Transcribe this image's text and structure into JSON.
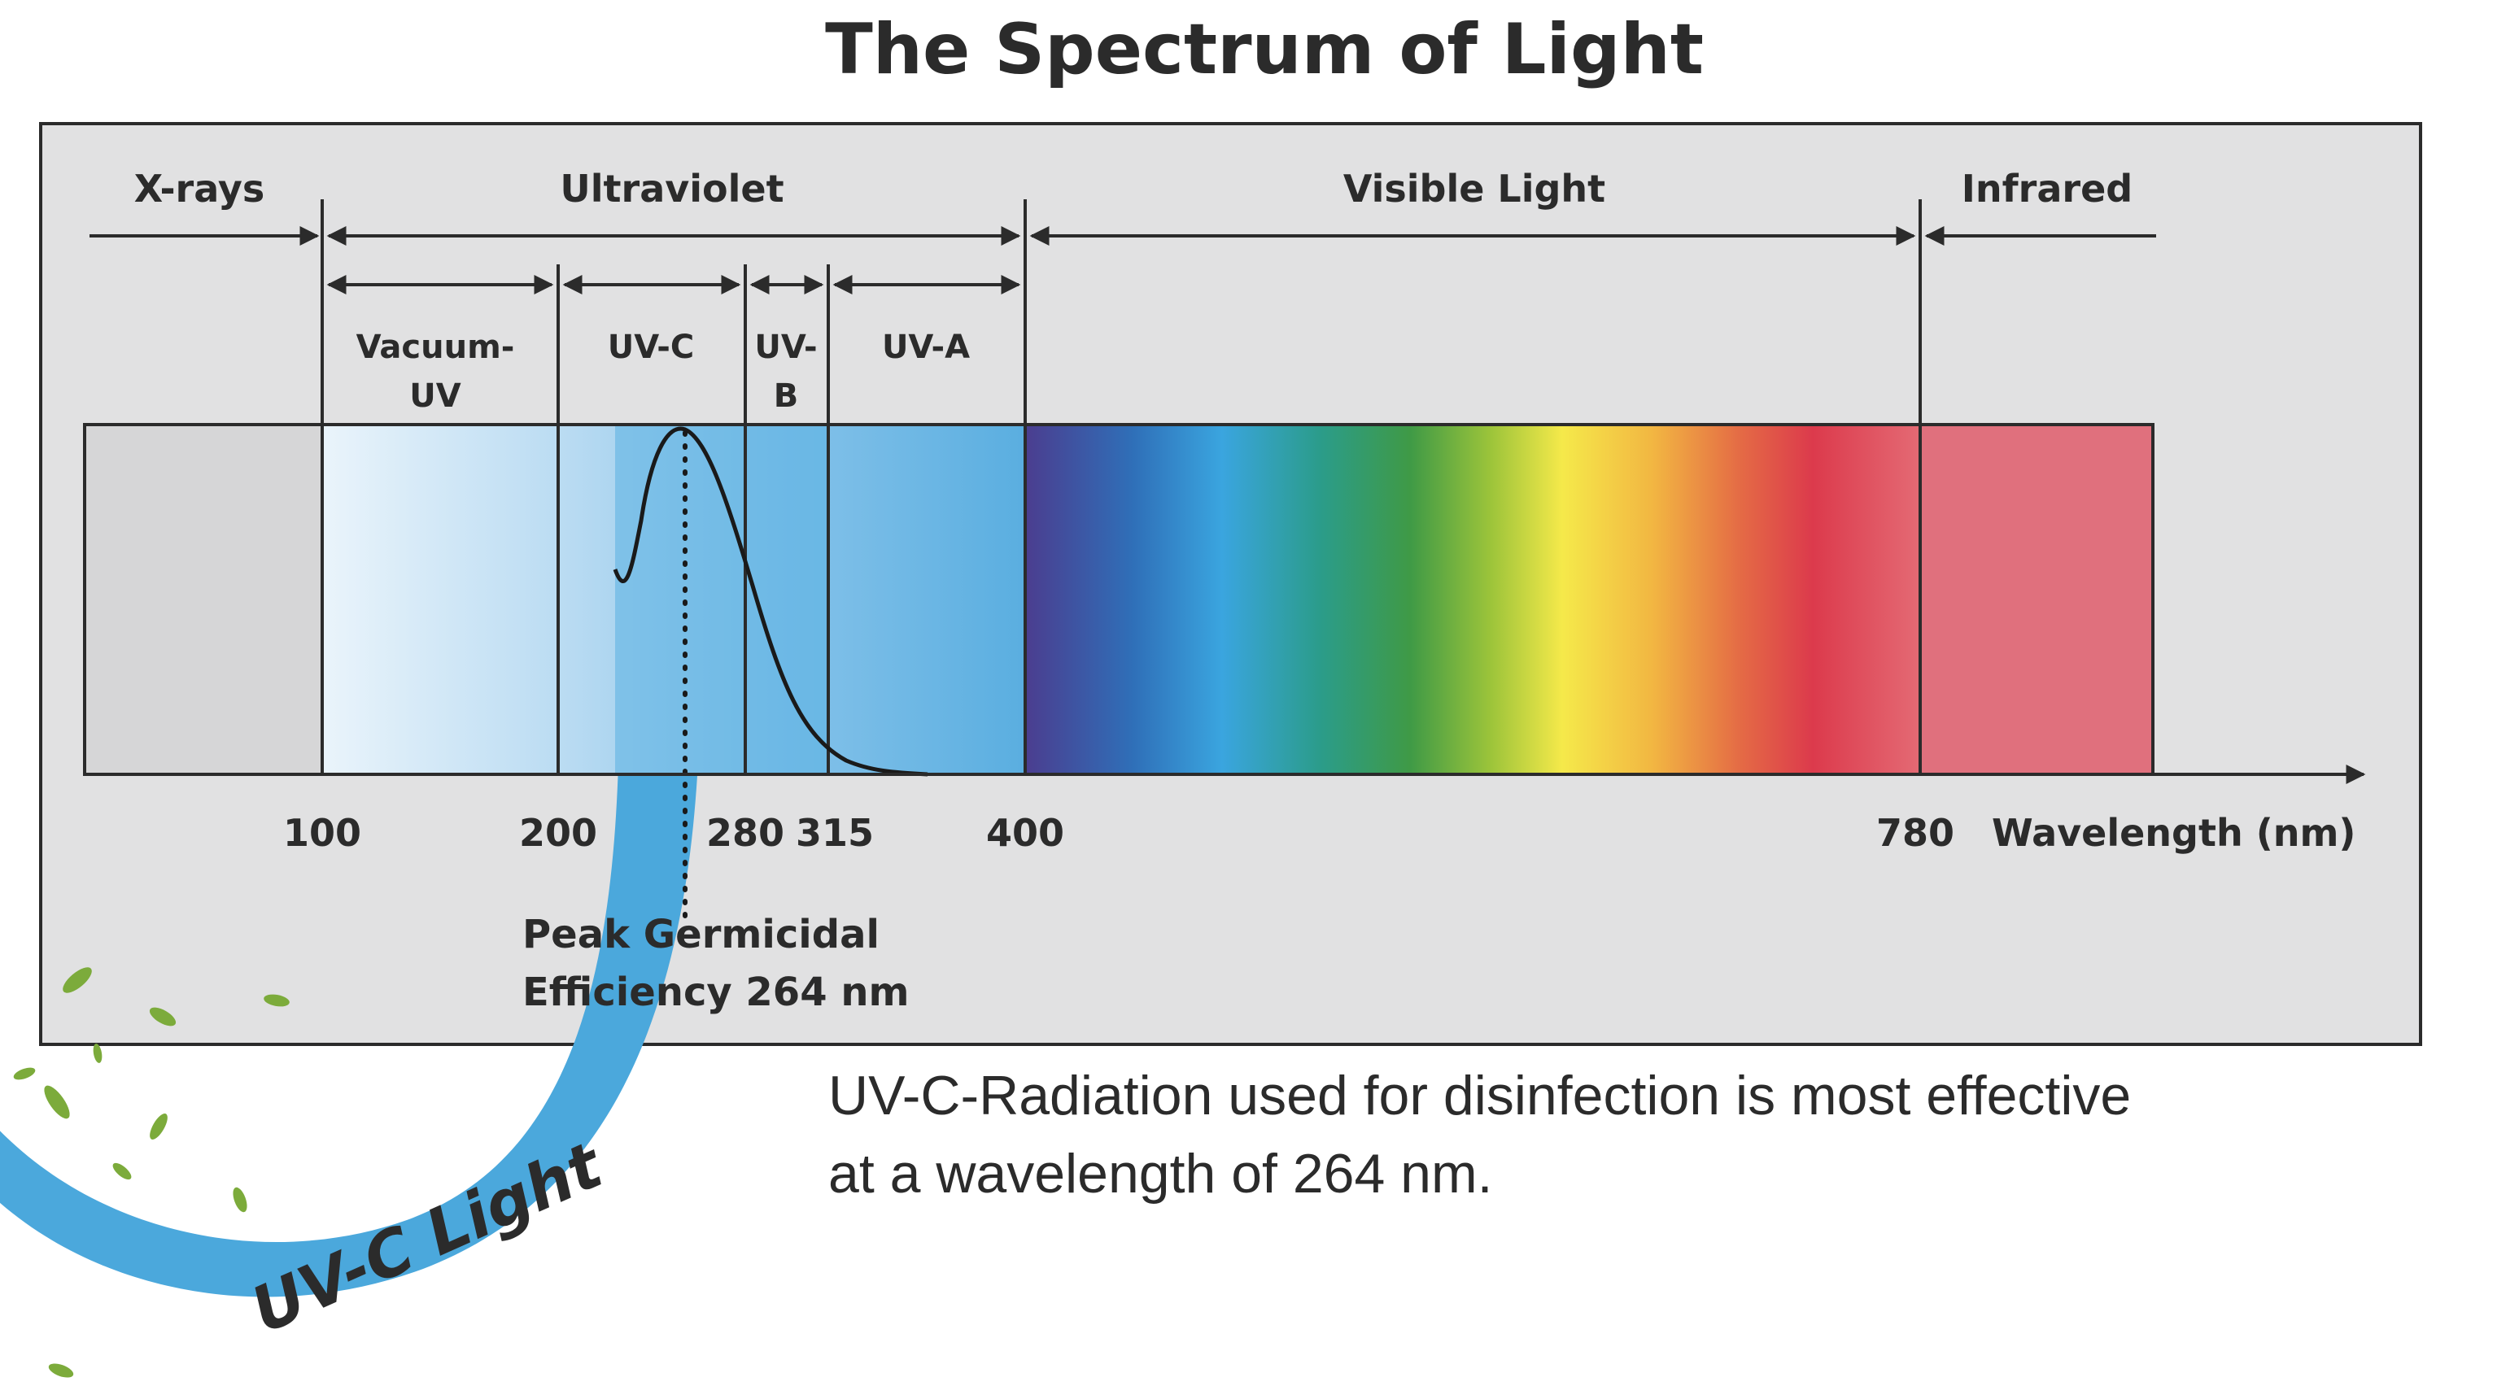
{
  "title": "The Spectrum of Light",
  "bands": [
    {
      "key": "xrays",
      "label": "X-rays"
    },
    {
      "key": "ultraviolet",
      "label": "Ultraviolet"
    },
    {
      "key": "visible",
      "label": "Visible Light"
    },
    {
      "key": "infrared",
      "label": "Infrared"
    }
  ],
  "uv_bands": [
    {
      "key": "vacuum-uv",
      "lines": [
        "Vacuum-",
        "UV"
      ]
    },
    {
      "key": "uv-c",
      "lines": [
        "UV-C"
      ]
    },
    {
      "key": "uv-b",
      "lines": [
        "UV-",
        "B"
      ]
    },
    {
      "key": "uv-a",
      "lines": [
        "UV-A"
      ]
    }
  ],
  "ticks": [
    "100",
    "200",
    "280",
    "315",
    "400",
    "780"
  ],
  "axis_label": "Wavelength (nm)",
  "peak_label_lines": [
    "Peak Germicidal",
    "Efficiency 264 nm"
  ],
  "peak_nm": 264,
  "caption_lines": [
    "UV-C-Radiation used for disinfection is most effective",
    "at a wavelength of 264 nm."
  ],
  "swoosh_label": "UV-C Light",
  "colors": {
    "panel": "#e1e1e2",
    "xray_block": "#d6d6d7",
    "uv_light": "#e8f3fb",
    "uv_mid": "#5ab0e2",
    "swoosh": "#4ba8dc",
    "swoosh_text": "#2f7fb8",
    "infrared": "#e0707d",
    "leaf": "#7cab3b"
  }
}
